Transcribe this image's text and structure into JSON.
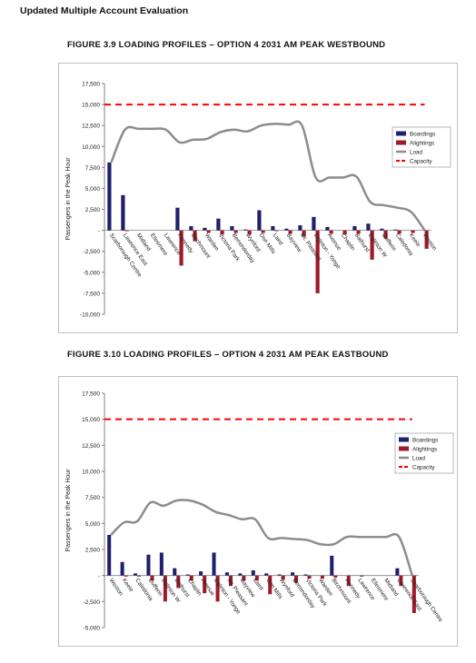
{
  "doc_header": "Updated Multiple Account Evaluation",
  "legend_labels": [
    "Boardings",
    "Alightings",
    "Load",
    "Capacity"
  ],
  "colors": {
    "boardings": "#1f1f6e",
    "alightings": "#9e1a2a",
    "load": "#8c8c8c",
    "capacity": "#ff0000"
  },
  "chart_data": [
    {
      "type": "bar",
      "title": "FIGURE 3.9    LOADING PROFILES – OPTION 4 2031 AM PEAK WESTBOUND",
      "ylabel": "Passengers in the Peak Hour",
      "ylim": [
        -10000,
        17500
      ],
      "yticks": [
        17500,
        15000,
        12500,
        10000,
        7500,
        5000,
        2500,
        0,
        -2500,
        -5000,
        -7500,
        -10000
      ],
      "ytick_labels": [
        "17,500",
        "15,000",
        "12,500",
        "10,000",
        "7,500",
        "5,000",
        "2,500",
        "-",
        "-2,500",
        "-5,000",
        "-7,500",
        "-10,000"
      ],
      "legend": "right",
      "categories": [
        "Scarborough Centre",
        "Lawrence East",
        "Midland",
        "Ellesmere",
        "Lawrence",
        "Kennedy",
        "Birchmount",
        "Warden",
        "Victoria Park",
        "Berrendorday",
        "Wynford",
        "Don Mills",
        "Laird",
        "Bayview",
        "Mt. Pleasant",
        "Eglinton - Yonge",
        "Avenue",
        "Chaplin",
        "Bathurst",
        "Eglinton W",
        "Dufferin",
        "Caledonia",
        "Keele",
        "Weston"
      ],
      "series": [
        {
          "name": "Boardings",
          "values": [
            8100,
            4200,
            0,
            0,
            0,
            2700,
            500,
            300,
            1400,
            500,
            100,
            2400,
            500,
            200,
            600,
            1600,
            400,
            0,
            500,
            800,
            200,
            100,
            0,
            0
          ]
        },
        {
          "name": "Alightings",
          "values": [
            0,
            -100,
            0,
            0,
            0,
            -4200,
            -1300,
            -300,
            -500,
            -300,
            -500,
            -300,
            -100,
            -400,
            -700,
            -7500,
            -400,
            -500,
            -400,
            -3500,
            -1000,
            -400,
            -300,
            -2200
          ]
        },
        {
          "name": "Load",
          "values": [
            8100,
            12000,
            12100,
            12100,
            12000,
            10500,
            10800,
            10900,
            11700,
            12000,
            11800,
            12500,
            12700,
            12600,
            12500,
            6300,
            6300,
            6300,
            6400,
            3400,
            3000,
            2700,
            2200,
            0
          ]
        },
        {
          "name": "Capacity",
          "values": [
            15000,
            15000,
            15000,
            15000,
            15000,
            15000,
            15000,
            15000,
            15000,
            15000,
            15000,
            15000,
            15000,
            15000,
            15000,
            15000,
            15000,
            15000,
            15000,
            15000,
            15000,
            15000,
            15000,
            15000
          ]
        }
      ]
    },
    {
      "type": "bar",
      "title": "FIGURE 3.10  LOADING PROFILES – OPTION 4 2031 AM PEAK EASTBOUND",
      "ylabel": "Passengers in the Peak Hour",
      "ylim": [
        -5000,
        17500
      ],
      "yticks": [
        17500,
        15000,
        12500,
        10000,
        7500,
        5000,
        2500,
        0,
        -2500,
        -5000
      ],
      "ytick_labels": [
        "17,500",
        "15,000",
        "12,500",
        "10,000",
        "7,500",
        "5,000",
        "2,500",
        "-",
        "-2,500",
        "-5,000"
      ],
      "legend": "right",
      "categories": [
        "Weston",
        "Keele",
        "Caledonia",
        "Dufferin",
        "Eglinton W",
        "Bathurst",
        "Chaplin",
        "Avenue",
        "Eglinton - Yonge",
        "Mt. Pleasant",
        "Bayview",
        "Laird",
        "Don Mills",
        "Wynford",
        "Berrendorday",
        "Victoria Park",
        "Warden",
        "Birchmount",
        "Kennedy",
        "Lawrence",
        "Ellesmere",
        "Midland",
        "Lawrence East",
        "Scarborough Centre"
      ],
      "series": [
        {
          "name": "Boardings",
          "values": [
            3900,
            1300,
            200,
            2000,
            2200,
            700,
            100,
            400,
            2200,
            300,
            200,
            500,
            200,
            100,
            300,
            100,
            0,
            1900,
            0,
            0,
            0,
            0,
            700,
            0
          ]
        },
        {
          "name": "Alightings",
          "values": [
            0,
            -100,
            -100,
            -500,
            -2500,
            -1200,
            -500,
            -1700,
            -2500,
            -1000,
            -500,
            -500,
            -1800,
            -400,
            -700,
            -300,
            -300,
            -200,
            -1000,
            -100,
            0,
            0,
            -1000,
            -3600
          ]
        },
        {
          "name": "Load",
          "values": [
            3900,
            5100,
            5200,
            7000,
            6700,
            7200,
            7200,
            6800,
            6100,
            5800,
            5400,
            5400,
            3600,
            3600,
            3500,
            3400,
            3000,
            3000,
            3700,
            3700,
            3700,
            3700,
            3700,
            0
          ]
        },
        {
          "name": "Capacity",
          "values": [
            15000,
            15000,
            15000,
            15000,
            15000,
            15000,
            15000,
            15000,
            15000,
            15000,
            15000,
            15000,
            15000,
            15000,
            15000,
            15000,
            15000,
            15000,
            15000,
            15000,
            15000,
            15000,
            15000,
            15000
          ]
        }
      ]
    }
  ]
}
